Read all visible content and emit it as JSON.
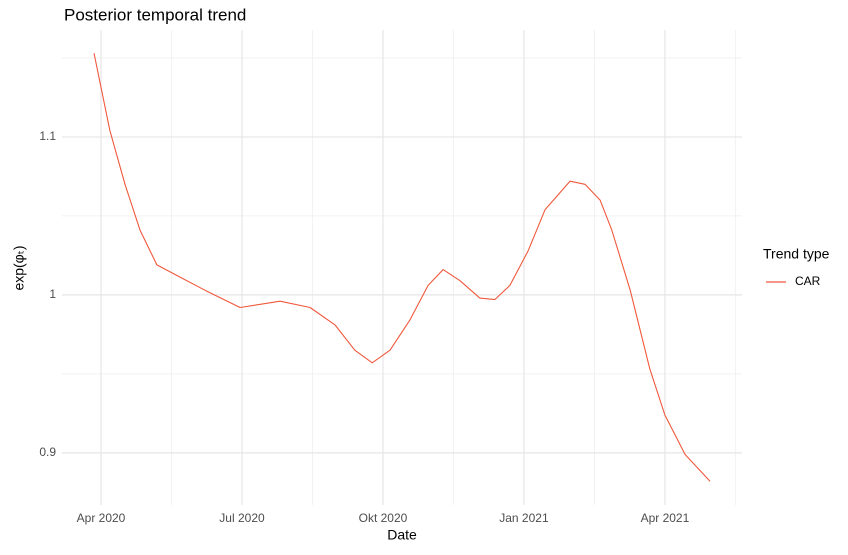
{
  "chart_data": {
    "type": "line",
    "title": "Posterior temporal trend",
    "x_label": "Date",
    "y_label": "exp(φₜ)",
    "legend_title": "Trend type",
    "legend_position": "right",
    "grid": true,
    "x": [
      2.85,
      3.19,
      3.51,
      3.83,
      4.19,
      4.57,
      5.21,
      5.96,
      6.81,
      7.45,
      7.98,
      8.4,
      8.77,
      9.15,
      9.57,
      9.96,
      10.28,
      10.64,
      11.06,
      11.38,
      11.7,
      12.09,
      12.45,
      12.98,
      13.3,
      13.62,
      13.87,
      14.26,
      14.68,
      15.0,
      15.43,
      15.96
    ],
    "series": [
      {
        "name": "CAR",
        "color": "#f0583c",
        "values": [
          1.153,
          1.104,
          1.07,
          1.041,
          1.019,
          1.013,
          1.003,
          0.992,
          0.996,
          0.992,
          0.981,
          0.965,
          0.957,
          0.965,
          0.984,
          1.006,
          1.016,
          1.009,
          0.998,
          0.997,
          1.006,
          1.028,
          1.054,
          1.072,
          1.07,
          1.06,
          1.041,
          1.003,
          0.953,
          0.924,
          0.899,
          0.882
        ]
      }
    ],
    "xlim": [
      2.17,
      16.64
    ],
    "xticks": [
      {
        "value": 3,
        "label": "Apr 2020"
      },
      {
        "value": 6,
        "label": "Jul 2020"
      },
      {
        "value": 9,
        "label": "Okt 2020"
      },
      {
        "value": 12,
        "label": "Jan 2021"
      },
      {
        "value": 15,
        "label": "Apr 2021"
      }
    ],
    "x_minor_ticks": [
      4.5,
      7.5,
      10.5,
      13.5,
      16.5
    ],
    "ylim": [
      0.867,
      1.1677
    ],
    "yticks": [
      0.9,
      1.0,
      1.1
    ],
    "y_minor_ticks": [
      0.95,
      1.05,
      1.15
    ]
  }
}
